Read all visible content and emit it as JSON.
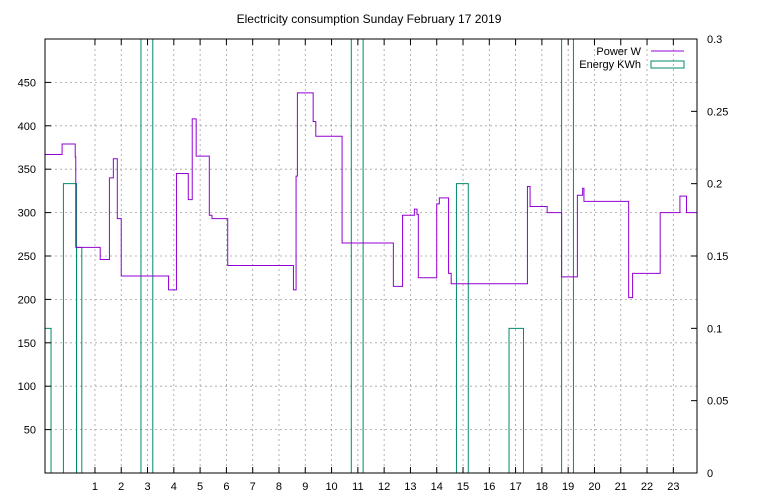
{
  "chart_data": {
    "type": "line",
    "title": "Electricity consumption Sunday February 17 2019",
    "xlabel": "",
    "ylabel": "",
    "y2label": "",
    "xlim": [
      -0.9,
      23.9
    ],
    "ylim": [
      0,
      500
    ],
    "y2lim": [
      0,
      0.3
    ],
    "grid": true,
    "legend_position": "top-right",
    "x_ticks": [
      1,
      2,
      3,
      4,
      5,
      6,
      7,
      8,
      9,
      10,
      11,
      12,
      13,
      14,
      15,
      16,
      17,
      18,
      19,
      20,
      21,
      22,
      23
    ],
    "y_ticks": [
      50,
      100,
      150,
      200,
      250,
      300,
      350,
      400,
      450
    ],
    "y2_ticks": [
      {
        "value": 0,
        "label": "0"
      },
      {
        "value": 0.05,
        "label": "0.05"
      },
      {
        "value": 0.1,
        "label": "0.1"
      },
      {
        "value": 0.15,
        "label": "0.15"
      },
      {
        "value": 0.2,
        "label": "0.2"
      },
      {
        "value": 0.25,
        "label": "0.25"
      },
      {
        "value": 0.3,
        "label": "0.3"
      }
    ],
    "series": [
      {
        "name": "Power W",
        "axis": "y",
        "style": "step",
        "color": "#9400d3",
        "x": [
          -0.9,
          -0.25,
          -0.25,
          0.0,
          0.1,
          0.1,
          0.25,
          0.25,
          0.27,
          0.27,
          0.46,
          0.46,
          1.2,
          1.2,
          1.55,
          1.55,
          1.7,
          1.7,
          1.78,
          1.78,
          1.85,
          1.85,
          1.85,
          2.0,
          2.0,
          3.8,
          3.8,
          4.1,
          4.1,
          4.55,
          4.55,
          4.7,
          4.7,
          4.85,
          4.85,
          5.35,
          5.35,
          5.45,
          5.45,
          6.05,
          6.05,
          8.55,
          8.55,
          8.65,
          8.65,
          8.7,
          8.7,
          9.3,
          9.3,
          9.4,
          9.4,
          10.4,
          10.4,
          12.35,
          12.35,
          12.7,
          12.7,
          13.15,
          13.15,
          13.25,
          13.25,
          13.3,
          13.3,
          14.0,
          14.0,
          14.1,
          14.1,
          14.45,
          14.45,
          14.55,
          14.55,
          17.45,
          17.45,
          17.55,
          17.55,
          18.2,
          18.2,
          18.75,
          18.75,
          19.35,
          19.35,
          19.55,
          19.55,
          19.6,
          19.6,
          21.3,
          21.3,
          21.45,
          21.45,
          22.5,
          22.5,
          23.25,
          23.25,
          23.5,
          23.5,
          23.9
        ],
        "y": [
          367,
          367,
          379,
          379,
          379,
          379,
          379,
          364,
          364,
          260,
          260,
          260,
          260,
          246,
          246,
          340,
          340,
          362,
          362,
          362,
          362,
          345,
          293,
          293,
          227,
          227,
          211,
          211,
          345,
          345,
          315,
          315,
          408,
          408,
          365,
          365,
          297,
          297,
          293,
          293,
          239,
          239,
          211,
          211,
          342,
          342,
          438,
          438,
          405,
          405,
          388,
          388,
          265,
          265,
          215,
          215,
          297,
          297,
          304,
          304,
          298,
          298,
          225,
          225,
          310,
          310,
          317,
          317,
          230,
          230,
          218,
          218,
          330,
          330,
          307,
          307,
          300,
          300,
          226,
          226,
          320,
          320,
          328,
          328,
          313,
          313,
          202,
          202,
          230,
          230,
          300,
          300,
          319,
          319,
          300,
          300
        ]
      },
      {
        "name": "Energy KWh",
        "axis": "y2",
        "style": "bars",
        "color": "#008b6b",
        "bars": [
          {
            "x0": -0.9,
            "x1": -0.67,
            "value": 0.1
          },
          {
            "x0": -0.2,
            "x1": 0.3,
            "value": 0.2
          },
          {
            "x0": 0.3,
            "x1": 0.5,
            "value": 0.156
          },
          {
            "x0": 2.75,
            "x1": 3.2,
            "value": 0.3
          },
          {
            "x0": 10.75,
            "x1": 11.2,
            "value": 0.3
          },
          {
            "x0": 14.75,
            "x1": 15.2,
            "value": 0.2
          },
          {
            "x0": 16.75,
            "x1": 17.3,
            "value": 0.1
          },
          {
            "x0": 18.75,
            "x1": 19.2,
            "value": 0.3
          }
        ]
      }
    ]
  }
}
